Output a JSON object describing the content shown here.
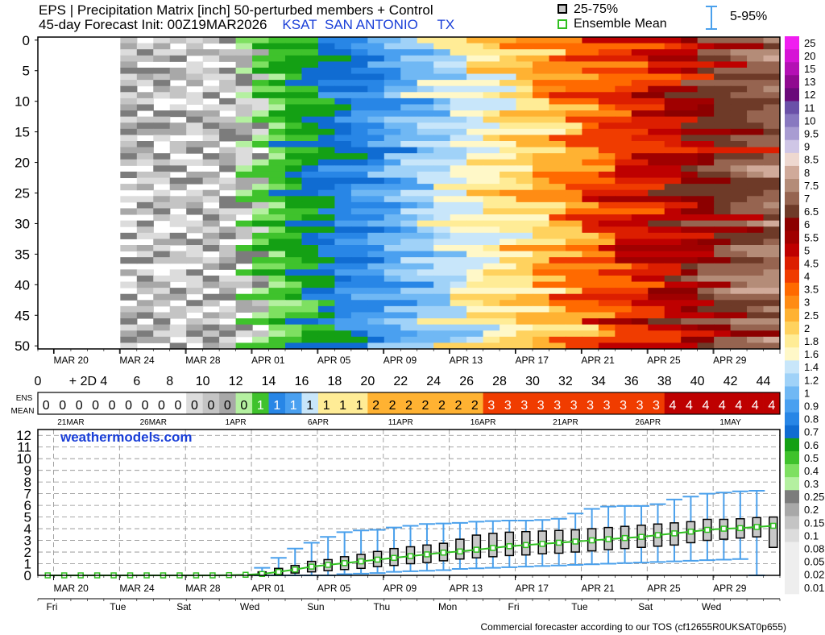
{
  "header": {
    "line1": "EPS | Precipitation Matrix [inch]  50-perturbed members + Control",
    "line2_prefix": "45-day Forecast Init: 00Z19MAR2026",
    "station": "KSAT",
    "city": "SAN ANTONIO",
    "state": "TX",
    "legend_box": "25-75%",
    "legend_mean": "Ensemble Mean",
    "legend_range": "5-95%"
  },
  "colors": {
    "grays": [
      "#dcdcdc",
      "#c4c4c4",
      "#a8a8a8",
      "#7c7c7c"
    ],
    "scale": [
      "#dcdcdc",
      "#c4c4c4",
      "#a8a8a8",
      "#7c7c7c",
      "#b4f0a0",
      "#7ee061",
      "#3fc22c",
      "#14a014",
      "#106cd2",
      "#2886e6",
      "#4aa0f0",
      "#70b8f4",
      "#a0d2f8",
      "#c8e6fa",
      "#fff8c8",
      "#ffec96",
      "#ffd25e",
      "#ffb232",
      "#ff8c14",
      "#ff6a00",
      "#f03c00",
      "#dc1e00",
      "#be0000",
      "#a00000",
      "#8c0000",
      "#6e3a28",
      "#966450",
      "#b48c78",
      "#d0aa9a",
      "#eed8d0",
      "#cfc6e6",
      "#a89cd2",
      "#8878c0",
      "#6a50a8",
      "#6a0a7a",
      "#900a90",
      "#b410b4",
      "#d614d6",
      "#f01ef0"
    ],
    "box_fill": "#c8c8c8",
    "whisker": "#4aa0ec",
    "mean_line": "#30c020"
  },
  "colorbar": {
    "labels": [
      "25",
      "20",
      "15",
      "13",
      "12",
      "11",
      "10",
      "9.5",
      "9",
      "8.5",
      "8",
      "7.5",
      "7",
      "6.5",
      "6",
      "5.5",
      "5",
      "4.5",
      "4",
      "3.5",
      "3",
      "2.5",
      "2",
      "1.8",
      "1.6",
      "1.4",
      "1.2",
      "1",
      "0.9",
      "0.8",
      "0.7",
      "0.6",
      "0.5",
      "0.4",
      "0.3",
      "0.25",
      "0.2",
      "0.15",
      "0.1",
      "0.08",
      "0.05",
      "0.02",
      "0.01"
    ]
  },
  "matrix": {
    "members": 51,
    "days": 45,
    "y_ticks": [
      "0",
      "5",
      "10",
      "15",
      "20",
      "25",
      "30",
      "35",
      "40",
      "45",
      "50"
    ],
    "x_date_ticks": [
      "MAR 20",
      "MAR 24",
      "MAR 28",
      "APR 01",
      "APR 05",
      "APR 09",
      "APR 13",
      "APR 17",
      "APR 21",
      "APR 25",
      "APR 29"
    ]
  },
  "day_axis": {
    "labels": [
      "0",
      "+ 2D",
      "4",
      "6",
      "8",
      "10",
      "12",
      "14",
      "16",
      "18",
      "20",
      "22",
      "24",
      "26",
      "28",
      "30",
      "32",
      "34",
      "36",
      "38",
      "40",
      "42",
      "44"
    ]
  },
  "ens_mean": {
    "label_top": "ENS",
    "label_bottom": "MEAN",
    "values": [
      "0",
      "0",
      "0",
      "0",
      "0",
      "0",
      "0",
      "0",
      "0",
      "0",
      "0",
      "0",
      "0",
      "1",
      "1",
      "1",
      "1",
      "1",
      "1",
      "1",
      "2",
      "2",
      "2",
      "2",
      "2",
      "2",
      "2",
      "3",
      "3",
      "3",
      "3",
      "3",
      "3",
      "3",
      "3",
      "3",
      "3",
      "3",
      "4",
      "4",
      "4",
      "4",
      "4",
      "4",
      "4"
    ],
    "date_labels": [
      "21MAR",
      "26MAR",
      "1APR",
      "6APR",
      "11APR",
      "16APR",
      "21APR",
      "26APR",
      "1MAY"
    ]
  },
  "watermark": "weathermodels.com",
  "weekdays": [
    "Fri",
    "Tue",
    "Sat",
    "Wed",
    "Sun",
    "Thu",
    "Mon",
    "Fri",
    "Tue",
    "Sat",
    "Wed"
  ],
  "footer": "Commercial forecaster according to our TOS (cf12655R0UKSAT0p655)",
  "chart_data": {
    "type": "box",
    "title": "",
    "xlabel": "",
    "ylabel": "",
    "x_labels": [
      "MAR 20",
      "MAR 24",
      "MAR 28",
      "APR 01",
      "APR 05",
      "APR 09",
      "APR 13",
      "APR 17",
      "APR 21",
      "APR 25",
      "APR 29"
    ],
    "ylim": [
      0,
      12.5
    ],
    "y_ticks": [
      0,
      1,
      2,
      3,
      4,
      5,
      6,
      7,
      8,
      9,
      10,
      11,
      12
    ],
    "grid": true,
    "series": [
      {
        "name": "Ensemble Mean",
        "x_day": [
          0,
          1,
          2,
          3,
          4,
          5,
          6,
          7,
          8,
          9,
          10,
          11,
          12,
          13,
          14,
          15,
          16,
          17,
          18,
          19,
          20,
          21,
          22,
          23,
          24,
          25,
          26,
          27,
          28,
          29,
          30,
          31,
          32,
          33,
          34,
          35,
          36,
          37,
          38,
          39,
          40,
          41,
          42,
          43,
          44
        ],
        "values": [
          0,
          0,
          0,
          0,
          0,
          0,
          0,
          0,
          0,
          0,
          0,
          0.02,
          0.05,
          0.12,
          0.3,
          0.5,
          0.75,
          0.9,
          1.05,
          1.2,
          1.35,
          1.5,
          1.65,
          1.8,
          1.95,
          2.05,
          2.2,
          2.35,
          2.5,
          2.6,
          2.7,
          2.8,
          2.9,
          3.0,
          3.1,
          3.2,
          3.3,
          3.45,
          3.6,
          3.75,
          3.9,
          4.0,
          4.05,
          4.15,
          4.25
        ]
      }
    ],
    "boxes": {
      "x_day": [
        13,
        14,
        15,
        16,
        17,
        18,
        19,
        20,
        21,
        22,
        23,
        24,
        25,
        26,
        27,
        28,
        29,
        30,
        31,
        32,
        33,
        34,
        35,
        36,
        37,
        38,
        39,
        40,
        41,
        42,
        43,
        44
      ],
      "q25": [
        0.05,
        0.1,
        0.2,
        0.3,
        0.4,
        0.5,
        0.6,
        0.75,
        0.85,
        1.0,
        1.1,
        1.25,
        1.4,
        1.5,
        1.6,
        1.7,
        1.75,
        1.85,
        1.9,
        2.0,
        2.1,
        2.2,
        2.3,
        2.4,
        2.5,
        2.6,
        2.8,
        3.0,
        3.1,
        3.2,
        3.3,
        2.4
      ],
      "q75": [
        0.3,
        0.6,
        0.85,
        1.2,
        1.35,
        1.6,
        1.8,
        2.05,
        2.3,
        2.45,
        2.6,
        2.75,
        3.1,
        3.45,
        3.6,
        3.7,
        3.75,
        3.8,
        3.85,
        3.9,
        4.0,
        4.1,
        4.2,
        4.3,
        4.4,
        4.5,
        4.6,
        4.8,
        4.8,
        4.85,
        4.95,
        5.0
      ],
      "p05": [
        0,
        0,
        0,
        0,
        0,
        0.1,
        0.15,
        0.2,
        0.3,
        0.35,
        0.4,
        0.45,
        0.55,
        0.6,
        0.65,
        0.7,
        0.75,
        0.8,
        0.85,
        0.9,
        0.95,
        1.0,
        1.05,
        1.1,
        1.15,
        1.2,
        1.25,
        1.3,
        1.35,
        1.4,
        0.0,
        null
      ],
      "p95": [
        0.65,
        1.5,
        2.3,
        2.8,
        3.3,
        3.7,
        3.85,
        3.9,
        4.1,
        4.25,
        4.4,
        4.45,
        4.5,
        4.6,
        4.65,
        4.7,
        4.7,
        4.75,
        4.85,
        5.3,
        5.7,
        5.9,
        5.95,
        5.95,
        6.1,
        6.5,
        6.75,
        7.0,
        7.1,
        7.2,
        7.25,
        null
      ]
    }
  }
}
